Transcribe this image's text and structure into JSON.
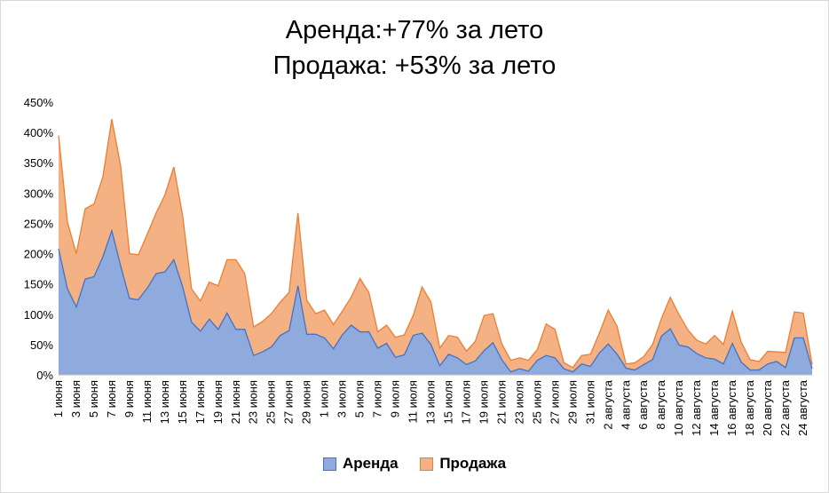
{
  "chart_data": {
    "type": "area",
    "stacked": true,
    "title_lines": [
      "Аренда:+77% за лето",
      "Продажа: +53% за лето"
    ],
    "y_tick_labels": [
      "0%",
      "50%",
      "100%",
      "150%",
      "200%",
      "250%",
      "300%",
      "350%",
      "400%",
      "450%"
    ],
    "y_ticks": [
      0,
      50,
      100,
      150,
      200,
      250,
      300,
      350,
      400,
      450
    ],
    "ylim": [
      0,
      450
    ],
    "categories": [
      "1 июня",
      "2 июня",
      "3 июня",
      "4 июня",
      "5 июня",
      "6 июня",
      "7 июня",
      "8 июня",
      "9 июня",
      "10 июня",
      "11 июня",
      "12 июня",
      "13 июня",
      "14 июня",
      "15 июня",
      "16 июня",
      "17 июня",
      "18 июня",
      "19 июня",
      "20 июня",
      "21 июня",
      "22 июня",
      "23 июня",
      "24 июня",
      "25 июня",
      "26 июня",
      "27 июня",
      "28 июня",
      "29 июня",
      "30 июня",
      "1 июля",
      "2 июля",
      "3 июля",
      "4 июля",
      "5 июля",
      "6 июля",
      "7 июля",
      "8 июля",
      "9 июля",
      "10 июля",
      "11 июля",
      "12 июля",
      "13 июля",
      "14 июля",
      "15 июля",
      "16 июля",
      "17 июля",
      "18 июля",
      "19 июля",
      "20 июля",
      "21 июля",
      "22 июля",
      "23 июля",
      "24 июля",
      "25 июля",
      "26 июля",
      "27 июля",
      "28 июля",
      "29 июля",
      "30 июля",
      "31 июля",
      "1 августа",
      "2 августа",
      "3 августа",
      "4 августа",
      "5 августа",
      "6 августа",
      "7 августа",
      "8 августа",
      "9 августа",
      "10 августа",
      "11 августа",
      "12 августа",
      "13 августа",
      "14 августа",
      "15 августа",
      "16 августа",
      "17 августа",
      "18 августа",
      "19 августа",
      "20 августа",
      "21 августа",
      "22 августа",
      "23 августа",
      "24 августа",
      "25 августа"
    ],
    "x_tick_labels": [
      "1 июня",
      "3 июня",
      "5 июня",
      "7 июня",
      "9 июня",
      "11 июня",
      "13 июня",
      "15 июня",
      "17 июня",
      "19 июня",
      "21 июня",
      "23 июня",
      "25 июня",
      "27 июня",
      "29 июня",
      "1 июля",
      "3 июля",
      "5 июля",
      "7 июля",
      "9 июля",
      "11 июля",
      "13 июля",
      "15 июля",
      "17 июля",
      "19 июля",
      "21 июля",
      "23 июля",
      "25 июля",
      "27 июля",
      "29 июля",
      "31 июля",
      "2 августа",
      "4 августа",
      "6 августа",
      "8 августа",
      "10 августа",
      "12 августа",
      "14 августа",
      "16 августа",
      "18 августа",
      "20 августа",
      "22 августа",
      "24 августа"
    ],
    "series": [
      {
        "name": "Аренда",
        "color": "#8faadc",
        "line": "#4472c4",
        "values": [
          208,
          142,
          112,
          158,
          162,
          195,
          238,
          180,
          126,
          124,
          143,
          167,
          170,
          190,
          145,
          87,
          72,
          92,
          75,
          102,
          75,
          75,
          32,
          38,
          46,
          65,
          73,
          147,
          67,
          67,
          61,
          43,
          66,
          82,
          71,
          71,
          44,
          52,
          29,
          33,
          65,
          69,
          50,
          15,
          34,
          28,
          17,
          23,
          40,
          53,
          25,
          5,
          10,
          6,
          24,
          32,
          28,
          10,
          5,
          18,
          14,
          36,
          51,
          34,
          11,
          8,
          17,
          25,
          64,
          76,
          49,
          46,
          35,
          28,
          26,
          18,
          52,
          21,
          8,
          8,
          18,
          22,
          12,
          61,
          61,
          10
        ]
      },
      {
        "name": "Продажа",
        "color": "#f4b183",
        "line": "#ed7d31",
        "values": [
          187,
          110,
          88,
          116,
          120,
          132,
          184,
          165,
          74,
          74,
          89,
          100,
          127,
          153,
          117,
          55,
          50,
          61,
          72,
          88,
          115,
          92,
          47,
          50,
          55,
          55,
          63,
          120,
          56,
          34,
          46,
          40,
          39,
          46,
          88,
          65,
          27,
          30,
          33,
          33,
          33,
          76,
          70,
          29,
          31,
          34,
          22,
          32,
          58,
          48,
          26,
          19,
          18,
          18,
          18,
          52,
          47,
          10,
          7,
          14,
          20,
          33,
          56,
          46,
          7,
          12,
          13,
          25,
          29,
          52,
          50,
          28,
          22,
          23,
          39,
          32,
          53,
          33,
          17,
          14,
          21,
          16,
          25,
          43,
          41,
          7
        ]
      }
    ],
    "legend": [
      "Аренда",
      "Продажа"
    ],
    "legend_position": "bottom"
  }
}
